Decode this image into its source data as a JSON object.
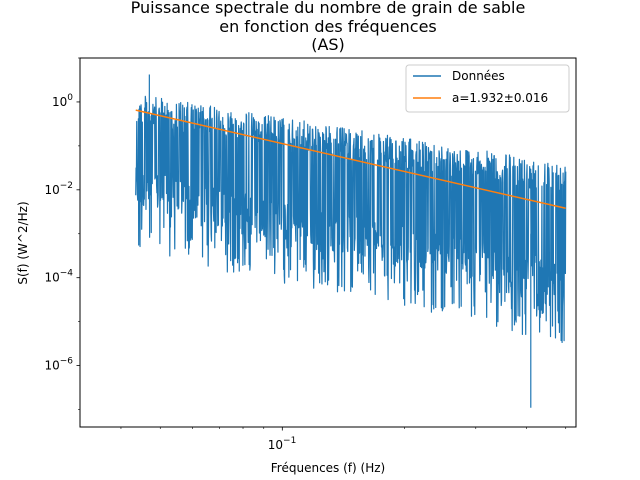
{
  "chart_data": {
    "type": "line",
    "title_lines": [
      "Puissance spectrale du nombre de grain de sable",
      "en fonction des fréquences",
      "(AS)"
    ],
    "xlabel": "Fréquences (f) (Hz)",
    "ylabel": "S(f) (W^2/Hz)",
    "x_scale": "log",
    "y_scale": "log",
    "xlim": [
      0.0317,
      0.53
    ],
    "ylim": [
      4e-08,
      10
    ],
    "x_ticks": [
      {
        "value": 0.1,
        "label": "10^-1"
      }
    ],
    "y_ticks": [
      {
        "value": 1e-06,
        "label": "10^-6"
      },
      {
        "value": 0.0001,
        "label": "10^-4"
      },
      {
        "value": 0.01,
        "label": "10^-2"
      },
      {
        "value": 1,
        "label": "10^0"
      }
    ],
    "grid": false,
    "legend_position": "top-right",
    "series": [
      {
        "name": "Données",
        "color": "#1f77b4",
        "kind": "noisy-spectrum",
        "x_range": [
          0.0435,
          0.5
        ],
        "upper_envelope": [
          [
            0.0435,
            1.5
          ],
          [
            0.1,
            0.45
          ],
          [
            0.2,
            0.15
          ],
          [
            0.5,
            0.04
          ]
        ],
        "lower_envelope": [
          [
            0.0435,
            0.004
          ],
          [
            0.1,
            0.0007
          ],
          [
            0.2,
            0.0002
          ],
          [
            0.5,
            3e-05
          ]
        ],
        "peak_max": {
          "x": 0.047,
          "y": 4.2
        },
        "min_value": {
          "x": 0.41,
          "y": 1.1e-07
        }
      },
      {
        "name": "a=1.932±0.016",
        "color": "#ff7f0e",
        "kind": "fit",
        "points": [
          [
            0.0435,
            0.65
          ],
          [
            0.5,
            0.0038
          ]
        ]
      }
    ]
  }
}
